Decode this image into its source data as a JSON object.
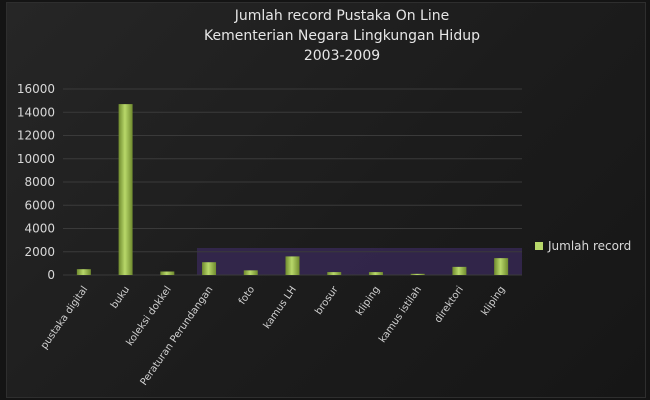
{
  "chart_data": {
    "type": "bar",
    "title_lines": [
      "Jumlah record Pustaka  On Line",
      "Kementerian Negara Lingkungan Hidup",
      "2003-2009"
    ],
    "categories": [
      "pustaka digital",
      "buku",
      "koleksi dokkel",
      "Peraturan Perundangan",
      "foto",
      "kamus LH",
      "brosur",
      "kliping",
      "kamus istilah",
      "direktori",
      "kliping"
    ],
    "series": [
      {
        "name": "Jumlah record",
        "values": [
          500,
          14700,
          300,
          1100,
          400,
          1600,
          250,
          250,
          100,
          700,
          1450
        ]
      }
    ],
    "ylim": [
      0,
      16000
    ],
    "yticks": [
      0,
      2000,
      4000,
      6000,
      8000,
      10000,
      12000,
      14000,
      16000
    ],
    "grid": true,
    "legend_position": "right",
    "colors": {
      "bar": "#b8d86a",
      "bar_dark": "#6f8a2e",
      "grid": "#3a3a3a",
      "band": "#3a2a5a"
    }
  }
}
